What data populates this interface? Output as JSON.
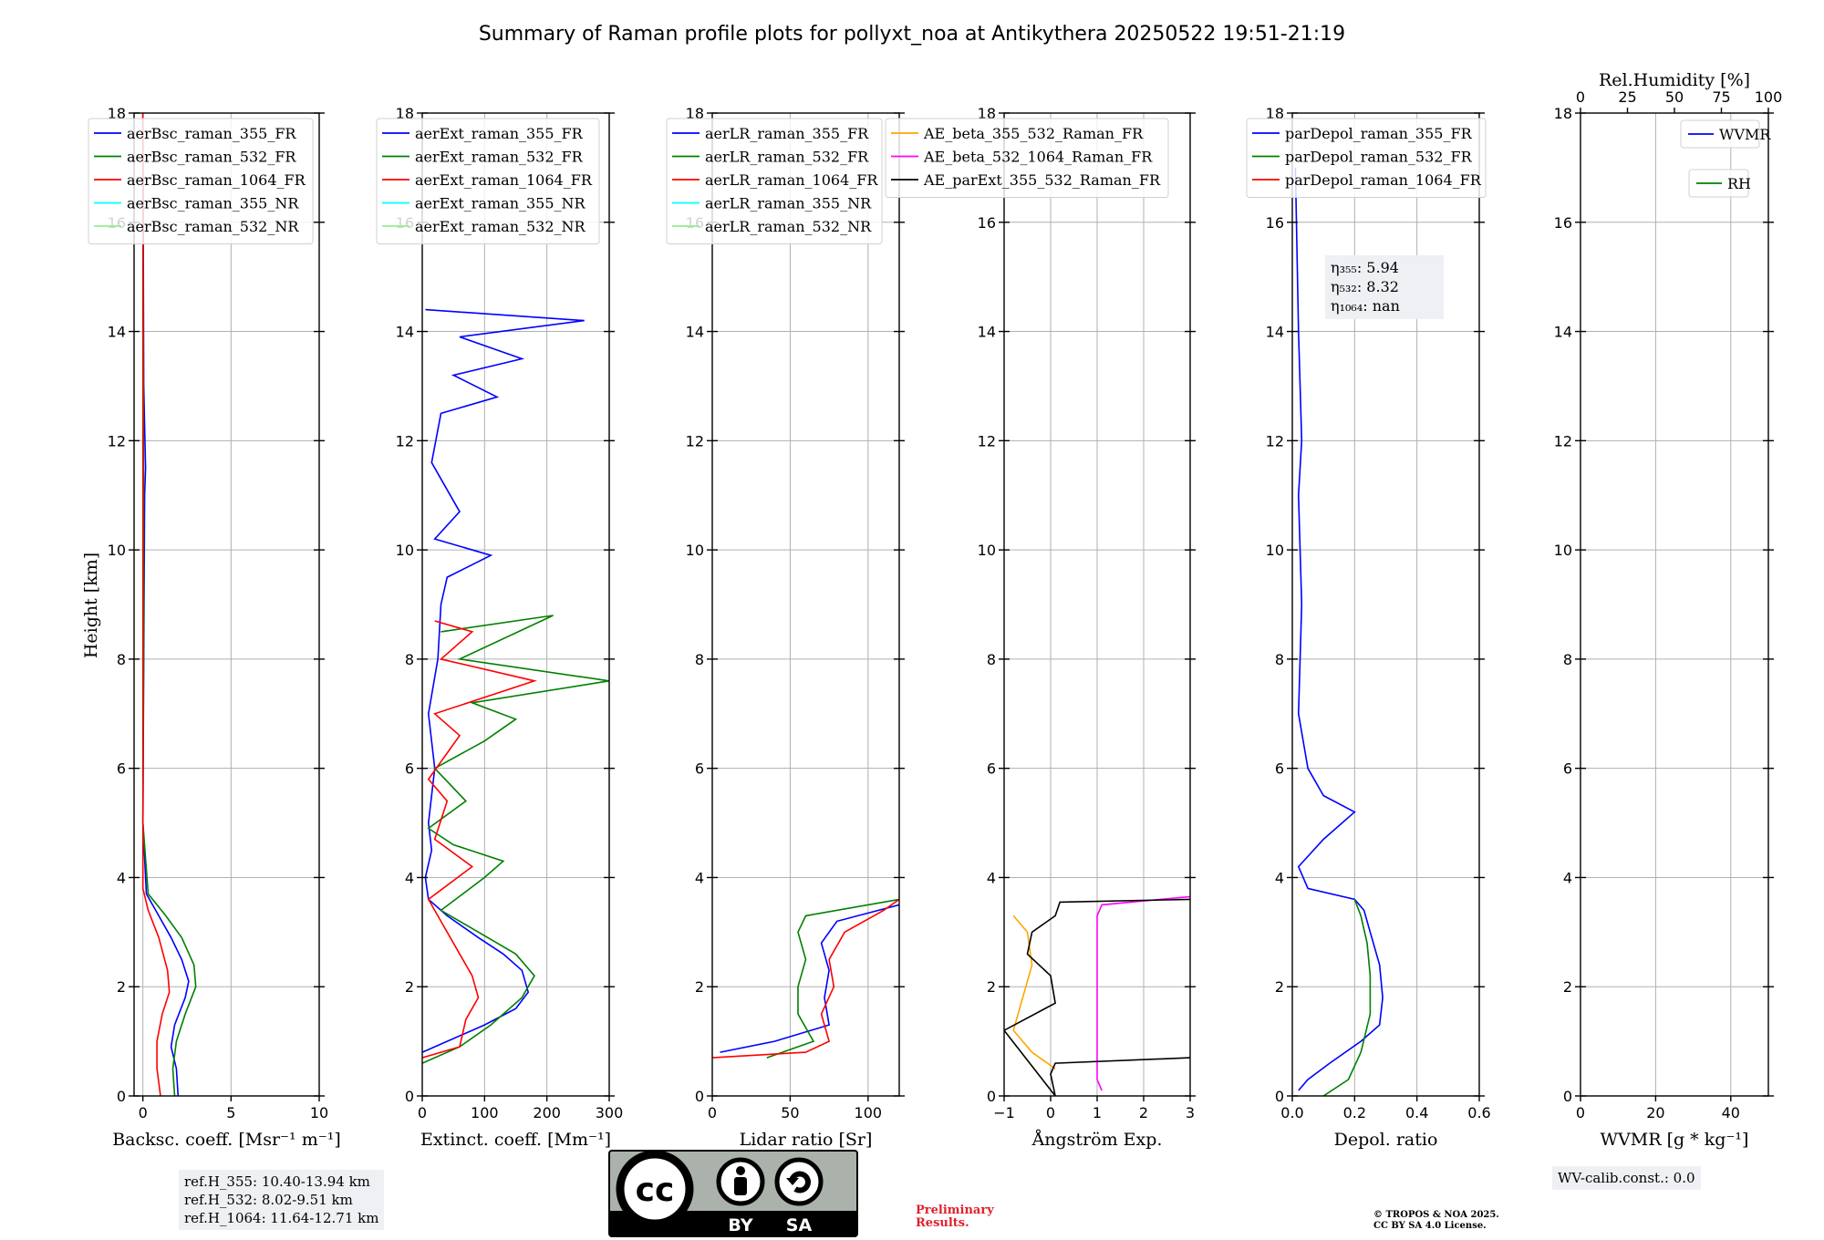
{
  "chart_data": {
    "type": "line",
    "title": "Summary of Raman profile plots for pollyxt_noa at Antikythera 20250522 19:51-21:19",
    "ylabel": "Height [km]",
    "ylim": [
      0,
      18
    ],
    "yticks": [
      0,
      2,
      4,
      6,
      8,
      10,
      12,
      14,
      16,
      18
    ],
    "panels": [
      {
        "id": "bsc",
        "xlabel": "Backsc. coeff. [Msr⁻¹ m⁻¹]",
        "xlim": [
          -0.5,
          10
        ],
        "xticks": [
          0,
          5,
          10
        ],
        "series": [
          {
            "name": "aerBsc_raman_355_FR",
            "color": "#0000ff",
            "points": [
              [
                2.0,
                0.0
              ],
              [
                1.9,
                0.5
              ],
              [
                1.6,
                0.9
              ],
              [
                1.8,
                1.3
              ],
              [
                2.4,
                1.8
              ],
              [
                2.6,
                2.1
              ],
              [
                2.2,
                2.5
              ],
              [
                1.6,
                2.9
              ],
              [
                0.9,
                3.3
              ],
              [
                0.2,
                3.7
              ],
              [
                0.0,
                5
              ],
              [
                0.05,
                8
              ],
              [
                0.1,
                11
              ],
              [
                0.15,
                11.5
              ],
              [
                0.05,
                13
              ],
              [
                0.0,
                18
              ]
            ]
          },
          {
            "name": "aerBsc_raman_532_FR",
            "color": "#008000",
            "points": [
              [
                1.8,
                0.0
              ],
              [
                1.7,
                0.5
              ],
              [
                1.9,
                1.0
              ],
              [
                2.4,
                1.5
              ],
              [
                3.0,
                2.0
              ],
              [
                2.9,
                2.4
              ],
              [
                2.2,
                2.9
              ],
              [
                1.3,
                3.3
              ],
              [
                0.3,
                3.7
              ],
              [
                0.0,
                5
              ],
              [
                0.05,
                9
              ],
              [
                0.0,
                18
              ]
            ]
          },
          {
            "name": "aerBsc_raman_1064_FR",
            "color": "#ff0000",
            "points": [
              [
                1.0,
                0.0
              ],
              [
                0.8,
                0.5
              ],
              [
                0.8,
                1.0
              ],
              [
                1.1,
                1.5
              ],
              [
                1.5,
                1.9
              ],
              [
                1.4,
                2.3
              ],
              [
                0.9,
                2.9
              ],
              [
                0.3,
                3.4
              ],
              [
                0.0,
                3.8
              ],
              [
                0.0,
                18
              ]
            ]
          },
          {
            "name": "aerBsc_raman_355_NR",
            "color": "#00ffff",
            "points": []
          },
          {
            "name": "aerBsc_raman_532_NR",
            "color": "#90ee90",
            "points": []
          }
        ],
        "legend": "upper-left"
      },
      {
        "id": "ext",
        "xlabel": "Extinct. coeff. [Mm⁻¹]",
        "xlim": [
          0,
          300
        ],
        "xticks": [
          0,
          100,
          200,
          300
        ],
        "series": [
          {
            "name": "aerExt_raman_355_FR",
            "color": "#0000ff",
            "points": [
              [
                0,
                0.8
              ],
              [
                40,
                1.0
              ],
              [
                100,
                1.3
              ],
              [
                150,
                1.6
              ],
              [
                170,
                1.9
              ],
              [
                160,
                2.3
              ],
              [
                130,
                2.6
              ],
              [
                90,
                2.9
              ],
              [
                40,
                3.3
              ],
              [
                10,
                3.6
              ],
              [
                5,
                4.0
              ],
              [
                15,
                4.5
              ],
              [
                10,
                5.0
              ],
              [
                20,
                6.0
              ],
              [
                10,
                7.0
              ],
              [
                25,
                8.0
              ],
              [
                30,
                9.0
              ],
              [
                40,
                9.5
              ],
              [
                110,
                9.9
              ],
              [
                20,
                10.2
              ],
              [
                60,
                10.7
              ],
              [
                30,
                11.3
              ],
              [
                15,
                11.6
              ],
              [
                30,
                12.5
              ],
              [
                120,
                12.8
              ],
              [
                50,
                13.2
              ],
              [
                160,
                13.5
              ],
              [
                60,
                13.9
              ],
              [
                260,
                14.2
              ],
              [
                5,
                14.4
              ]
            ]
          },
          {
            "name": "aerExt_raman_532_FR",
            "color": "#008000",
            "points": [
              [
                0,
                0.6
              ],
              [
                60,
                0.9
              ],
              [
                110,
                1.3
              ],
              [
                160,
                1.8
              ],
              [
                180,
                2.2
              ],
              [
                150,
                2.6
              ],
              [
                90,
                3.0
              ],
              [
                30,
                3.4
              ],
              [
                100,
                4.0
              ],
              [
                130,
                4.3
              ],
              [
                50,
                4.6
              ],
              [
                10,
                4.9
              ],
              [
                70,
                5.4
              ],
              [
                20,
                6.0
              ],
              [
                100,
                6.5
              ],
              [
                150,
                6.9
              ],
              [
                80,
                7.2
              ],
              [
                300,
                7.6
              ],
              [
                60,
                8.0
              ],
              [
                210,
                8.8
              ],
              [
                30,
                8.5
              ]
            ]
          },
          {
            "name": "aerExt_raman_1064_FR",
            "color": "#ff0000",
            "points": [
              [
                0,
                0.7
              ],
              [
                60,
                0.9
              ],
              [
                70,
                1.4
              ],
              [
                90,
                1.8
              ],
              [
                80,
                2.2
              ],
              [
                60,
                2.6
              ],
              [
                30,
                3.2
              ],
              [
                10,
                3.6
              ],
              [
                80,
                4.2
              ],
              [
                20,
                4.7
              ],
              [
                40,
                5.4
              ],
              [
                10,
                5.8
              ],
              [
                60,
                6.6
              ],
              [
                20,
                7.0
              ],
              [
                180,
                7.6
              ],
              [
                30,
                8.0
              ],
              [
                80,
                8.5
              ],
              [
                20,
                8.7
              ]
            ]
          },
          {
            "name": "aerExt_raman_355_NR",
            "color": "#00ffff",
            "points": []
          },
          {
            "name": "aerExt_raman_532_NR",
            "color": "#90ee90",
            "points": []
          }
        ],
        "legend": "upper-left"
      },
      {
        "id": "lr",
        "xlabel": "Lidar ratio [Sr]",
        "xlim": [
          0,
          120
        ],
        "xticks": [
          0,
          50,
          100
        ],
        "series": [
          {
            "name": "aerLR_raman_355_FR",
            "color": "#0000ff",
            "points": [
              [
                5,
                0.8
              ],
              [
                40,
                1.0
              ],
              [
                75,
                1.3
              ],
              [
                72,
                1.8
              ],
              [
                75,
                2.3
              ],
              [
                70,
                2.8
              ],
              [
                80,
                3.2
              ],
              [
                120,
                3.5
              ]
            ]
          },
          {
            "name": "aerLR_raman_532_FR",
            "color": "#008000",
            "points": [
              [
                35,
                0.7
              ],
              [
                65,
                1.0
              ],
              [
                55,
                1.5
              ],
              [
                55,
                2.0
              ],
              [
                60,
                2.5
              ],
              [
                55,
                3.0
              ],
              [
                60,
                3.3
              ],
              [
                120,
                3.6
              ]
            ]
          },
          {
            "name": "aerLR_raman_1064_FR",
            "color": "#ff0000",
            "points": [
              [
                0,
                0.7
              ],
              [
                60,
                0.8
              ],
              [
                75,
                1.0
              ],
              [
                70,
                1.5
              ],
              [
                78,
                2.0
              ],
              [
                75,
                2.5
              ],
              [
                85,
                3.0
              ],
              [
                110,
                3.4
              ],
              [
                120,
                3.6
              ]
            ]
          },
          {
            "name": "aerLR_raman_355_NR",
            "color": "#00ffff",
            "points": []
          },
          {
            "name": "aerLR_raman_532_NR",
            "color": "#90ee90",
            "points": []
          }
        ],
        "legend": "upper-left"
      },
      {
        "id": "ae",
        "xlabel": "Ångström Exp.",
        "xlim": [
          -1,
          3
        ],
        "xticks": [
          -1,
          0,
          1,
          2,
          3
        ],
        "series": [
          {
            "name": "AE_beta_355_532_Raman_FR",
            "color": "#ffa500",
            "points": [
              [
                0.1,
                0.5
              ],
              [
                -0.4,
                0.8
              ],
              [
                -0.8,
                1.2
              ],
              [
                -0.6,
                1.8
              ],
              [
                -0.4,
                2.4
              ],
              [
                -0.5,
                3.0
              ],
              [
                -0.8,
                3.3
              ]
            ]
          },
          {
            "name": "AE_beta_532_1064_Raman_FR",
            "color": "#ff00ff",
            "points": [
              [
                1.1,
                0.1
              ],
              [
                1.0,
                0.3
              ],
              [
                1.0,
                1.5
              ],
              [
                1.0,
                2.5
              ],
              [
                1.0,
                3.3
              ],
              [
                1.1,
                3.5
              ],
              [
                3.0,
                3.65
              ]
            ]
          },
          {
            "name": "AE_parExt_355_532_Raman_FR",
            "color": "#000000",
            "points": [
              [
                3.0,
                0.7
              ],
              [
                0.1,
                0.6
              ],
              [
                0.0,
                0.4
              ],
              [
                0.1,
                0.0
              ],
              [
                -1.0,
                1.2
              ],
              [
                0.1,
                1.7
              ],
              [
                0.0,
                2.2
              ],
              [
                -0.5,
                2.6
              ],
              [
                -0.4,
                3.0
              ],
              [
                0.1,
                3.3
              ],
              [
                0.2,
                3.55
              ],
              [
                3.0,
                3.6
              ]
            ]
          }
        ],
        "legend": "upper-left"
      },
      {
        "id": "depol",
        "xlabel": "Depol. ratio",
        "xlim": [
          0,
          0.6
        ],
        "xticks": [
          0.0,
          0.2,
          0.4,
          0.6
        ],
        "series": [
          {
            "name": "parDepol_raman_355_FR",
            "color": "#0000ff",
            "points": [
              [
                0.02,
                0.1
              ],
              [
                0.05,
                0.3
              ],
              [
                0.12,
                0.6
              ],
              [
                0.22,
                1.0
              ],
              [
                0.28,
                1.3
              ],
              [
                0.29,
                1.8
              ],
              [
                0.28,
                2.4
              ],
              [
                0.25,
                3.0
              ],
              [
                0.23,
                3.4
              ],
              [
                0.2,
                3.6
              ],
              [
                0.05,
                3.8
              ],
              [
                0.02,
                4.2
              ],
              [
                0.1,
                4.7
              ],
              [
                0.2,
                5.2
              ],
              [
                0.1,
                5.5
              ],
              [
                0.05,
                6.0
              ],
              [
                0.02,
                7.0
              ],
              [
                0.03,
                9.0
              ],
              [
                0.02,
                11.0
              ],
              [
                0.03,
                12.0
              ],
              [
                0.02,
                14.0
              ],
              [
                0.01,
                17.0
              ]
            ]
          },
          {
            "name": "parDepol_raman_532_FR",
            "color": "#008000",
            "points": [
              [
                0.1,
                0.0
              ],
              [
                0.18,
                0.3
              ],
              [
                0.22,
                0.8
              ],
              [
                0.25,
                1.5
              ],
              [
                0.25,
                2.2
              ],
              [
                0.24,
                2.8
              ],
              [
                0.22,
                3.3
              ],
              [
                0.2,
                3.6
              ]
            ]
          },
          {
            "name": "parDepol_raman_1064_FR",
            "color": "#ff0000",
            "points": []
          }
        ],
        "legend": "upper-left",
        "annotation": [
          "η₃₅₅: 5.94",
          "η₅₃₂: 8.32",
          "η₁₀₆₄: nan"
        ]
      },
      {
        "id": "wv",
        "xlabel": "WVMR [g * kg⁻¹]",
        "xlim": [
          0,
          50
        ],
        "xticks": [
          0,
          20,
          40
        ],
        "top_xlabel": "Rel.Humidity [%]",
        "top_xlim": [
          0,
          100
        ],
        "top_xticks": [
          0,
          25,
          50,
          75,
          100
        ],
        "series": [
          {
            "name": "WVMR",
            "color": "#0000ff",
            "points": []
          },
          {
            "name": "RH",
            "color": "#008000",
            "points": []
          }
        ]
      }
    ]
  },
  "footer": {
    "ref_heights": [
      "ref.H_355: 10.40-13.94 km",
      "ref.H_532: 8.02-9.51 km",
      "ref.H_1064: 11.64-12.71 km"
    ],
    "license_badge": {
      "cc": "cc",
      "by": "BY",
      "sa": "SA"
    },
    "preliminary": [
      "Preliminary",
      "Results."
    ],
    "copyright": [
      "© TROPOS & NOA 2025.",
      "CC BY SA 4.0 License."
    ],
    "wv_calib": "WV-calib.const.: 0.0"
  }
}
